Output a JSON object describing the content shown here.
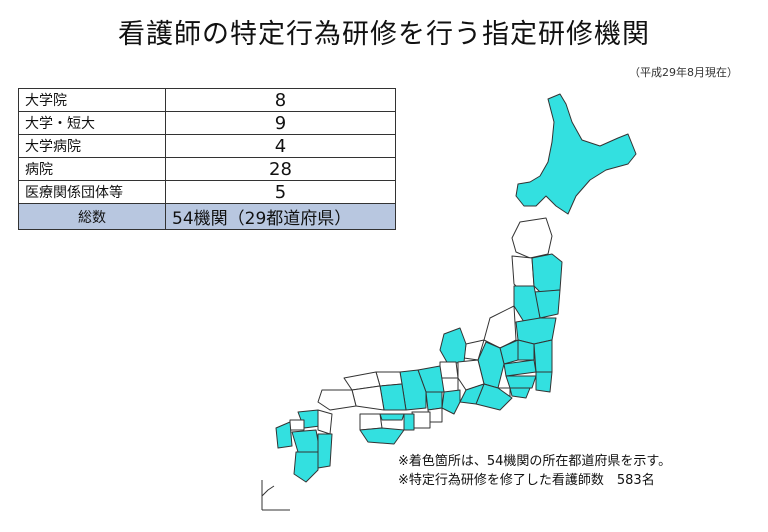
{
  "title": "看護師の特定行為研修を行う指定研修機関",
  "subtitle": "（平成29年8月現在）",
  "table": {
    "rows": [
      {
        "label": "大学院",
        "value": "8"
      },
      {
        "label": "大学・短大",
        "value": "9"
      },
      {
        "label": "大学病院",
        "value": "4"
      },
      {
        "label": "病院",
        "value": "28"
      },
      {
        "label": "医療関係団体等",
        "value": "5"
      }
    ],
    "total": {
      "label": "総数",
      "value": "54機関（29都道府県）"
    }
  },
  "notes": [
    "※着色箇所は、54機関の所在都道府県を示す。",
    "※特定行為研修を修了した看護師数　583名"
  ],
  "colors": {
    "highlight": "#33e0e0",
    "unshaded": "#ffffff",
    "border": "#333333",
    "total_row": "#b8c7e0"
  }
}
